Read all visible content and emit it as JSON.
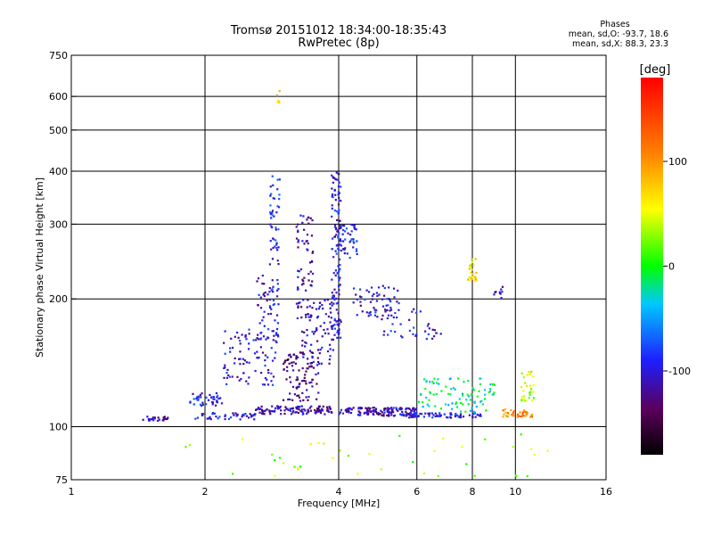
{
  "title_line1": "Tromsø 20151012 18:34:00-18:35:43",
  "title_line2": "RwPretec (8p)",
  "stats": {
    "heading": "Phases",
    "line1": "mean, sd,O: -93.7, 18.6",
    "line2": "mean, sd,X:  88.3, 23.3"
  },
  "colorbar": {
    "label": "[deg]",
    "range": [
      -180,
      180
    ],
    "ticks": [
      {
        "v": 100,
        "label": "100"
      },
      {
        "v": 0,
        "label": "0"
      },
      {
        "v": -100,
        "label": "-100"
      }
    ]
  },
  "chart_data": {
    "type": "scatter",
    "xlabel": "Frequency [MHz]",
    "ylabel": "Stationary phase Virtual Height [km]",
    "xscale": "log",
    "yscale": "log",
    "xlim": [
      1,
      16
    ],
    "ylim": [
      75,
      750
    ],
    "xticks": [
      {
        "v": 1,
        "label": "1"
      },
      {
        "v": 2,
        "label": "2"
      },
      {
        "v": 4,
        "label": "4"
      },
      {
        "v": 6,
        "label": "6"
      },
      {
        "v": 8,
        "label": "8"
      },
      {
        "v": 10,
        "label": "10"
      },
      {
        "v": 16,
        "label": "16"
      }
    ],
    "yticks": [
      {
        "v": 75,
        "label": "75"
      },
      {
        "v": 100,
        "label": "100"
      },
      {
        "v": 200,
        "label": "200"
      },
      {
        "v": 300,
        "label": "300"
      },
      {
        "v": 400,
        "label": "400"
      },
      {
        "v": 500,
        "label": "500"
      },
      {
        "v": 600,
        "label": "600"
      },
      {
        "v": 750,
        "label": "750"
      }
    ],
    "grid_x": [
      2,
      4,
      6,
      8,
      10
    ],
    "grid_y": [
      100,
      200,
      300,
      400,
      500,
      600
    ],
    "color_encodes": "phase [deg]",
    "clusters": [
      {
        "fmin": 1.45,
        "fmax": 1.65,
        "hmin": 103,
        "hmax": 106,
        "phase": -110,
        "n": 25
      },
      {
        "fmin": 1.85,
        "fmax": 2.2,
        "hmin": 112,
        "hmax": 120,
        "phase": -95,
        "n": 40
      },
      {
        "fmin": 1.9,
        "fmax": 2.6,
        "hmin": 104,
        "hmax": 108,
        "phase": -100,
        "n": 45
      },
      {
        "fmin": 2.2,
        "fmax": 2.9,
        "hmin": 125,
        "hmax": 170,
        "phase": -100,
        "n": 90
      },
      {
        "fmin": 2.6,
        "fmax": 2.95,
        "hmin": 160,
        "hmax": 230,
        "phase": -100,
        "n": 60
      },
      {
        "fmin": 2.8,
        "fmax": 2.95,
        "hmin": 240,
        "hmax": 390,
        "phase": -90,
        "n": 45
      },
      {
        "fmin": 2.6,
        "fmax": 3.9,
        "hmin": 107,
        "hmax": 112,
        "phase": -115,
        "n": 110
      },
      {
        "fmin": 3.0,
        "fmax": 3.6,
        "hmin": 115,
        "hmax": 150,
        "phase": -125,
        "n": 90
      },
      {
        "fmin": 3.2,
        "fmax": 3.5,
        "hmin": 180,
        "hmax": 320,
        "phase": -110,
        "n": 70
      },
      {
        "fmin": 3.3,
        "fmax": 3.9,
        "hmin": 140,
        "hmax": 200,
        "phase": -105,
        "n": 70
      },
      {
        "fmin": 3.85,
        "fmax": 4.05,
        "hmin": 160,
        "hmax": 400,
        "phase": -100,
        "n": 130
      },
      {
        "fmin": 4.0,
        "fmax": 4.4,
        "hmin": 250,
        "hmax": 300,
        "phase": -95,
        "n": 45
      },
      {
        "fmin": 4.0,
        "fmax": 6.0,
        "hmin": 106,
        "hmax": 111,
        "phase": -110,
        "n": 130
      },
      {
        "fmin": 4.3,
        "fmax": 5.5,
        "hmin": 180,
        "hmax": 215,
        "phase": -100,
        "n": 60
      },
      {
        "fmin": 5.0,
        "fmax": 6.8,
        "hmin": 160,
        "hmax": 190,
        "phase": -100,
        "n": 40
      },
      {
        "fmin": 5.5,
        "fmax": 8.5,
        "hmin": 105,
        "hmax": 108,
        "phase": -100,
        "n": 80
      },
      {
        "fmin": 6.0,
        "fmax": 9.0,
        "hmin": 108,
        "hmax": 130,
        "phase": -20,
        "n": 90
      },
      {
        "fmin": 7.8,
        "fmax": 8.2,
        "hmin": 220,
        "hmax": 250,
        "phase": 60,
        "n": 25
      },
      {
        "fmin": 9.3,
        "fmax": 11.0,
        "hmin": 105,
        "hmax": 110,
        "phase": 110,
        "n": 40
      },
      {
        "fmin": 10.3,
        "fmax": 11.0,
        "hmin": 115,
        "hmax": 135,
        "phase": 40,
        "n": 30
      },
      {
        "fmin": 2.9,
        "fmax": 2.95,
        "hmin": 580,
        "hmax": 620,
        "phase": 80,
        "n": 5
      },
      {
        "fmin": 8.8,
        "fmax": 9.5,
        "hmin": 195,
        "hmax": 215,
        "phase": -110,
        "n": 10
      },
      {
        "fmin": 1.8,
        "fmax": 12.0,
        "hmin": 76,
        "hmax": 98,
        "phase": 30,
        "n": 40
      }
    ]
  }
}
